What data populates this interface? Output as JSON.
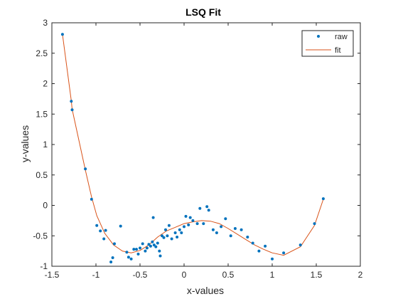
{
  "chart_data": {
    "type": "scatter",
    "title": "LSQ Fit",
    "xlabel": "x-values",
    "ylabel": "y-values",
    "xlim": [
      -1.5,
      2
    ],
    "ylim": [
      -1,
      3
    ],
    "xticks": [
      -1.5,
      -1,
      -0.5,
      0,
      0.5,
      1,
      1.5,
      2
    ],
    "yticks": [
      -1,
      -0.5,
      0,
      0.5,
      1,
      1.5,
      2,
      2.5,
      3
    ],
    "xtick_labels": [
      "-1.5",
      "-1",
      "-0.5",
      "0",
      "0.5",
      "1",
      "1.5",
      "2"
    ],
    "ytick_labels": [
      "-1",
      "-0.5",
      "0",
      "0.5",
      "1",
      "1.5",
      "2",
      "2.5",
      "3"
    ],
    "grid": false,
    "legend": {
      "position": "top-right",
      "entries": [
        "raw",
        "fit"
      ]
    },
    "colors": {
      "raw": "#0072bd",
      "fit": "#d95319"
    },
    "series": [
      {
        "name": "raw",
        "type": "scatter",
        "points": [
          [
            -1.38,
            2.81
          ],
          [
            -1.28,
            1.71
          ],
          [
            -1.27,
            1.57
          ],
          [
            -1.12,
            0.6
          ],
          [
            -1.05,
            0.1
          ],
          [
            -0.99,
            -0.33
          ],
          [
            -0.95,
            -0.42
          ],
          [
            -0.91,
            -0.55
          ],
          [
            -0.89,
            -0.41
          ],
          [
            -0.83,
            -0.93
          ],
          [
            -0.81,
            -0.86
          ],
          [
            -0.79,
            -0.63
          ],
          [
            -0.72,
            -0.34
          ],
          [
            -0.65,
            -0.77
          ],
          [
            -0.63,
            -0.85
          ],
          [
            -0.6,
            -0.88
          ],
          [
            -0.57,
            -0.72
          ],
          [
            -0.54,
            -0.72
          ],
          [
            -0.52,
            -0.8
          ],
          [
            -0.5,
            -0.7
          ],
          [
            -0.47,
            -0.63
          ],
          [
            -0.44,
            -0.75
          ],
          [
            -0.42,
            -0.7
          ],
          [
            -0.4,
            -0.64
          ],
          [
            -0.38,
            -0.67
          ],
          [
            -0.36,
            -0.6
          ],
          [
            -0.35,
            -0.2
          ],
          [
            -0.34,
            -0.65
          ],
          [
            -0.32,
            -0.68
          ],
          [
            -0.3,
            -0.62
          ],
          [
            -0.28,
            -0.75
          ],
          [
            -0.27,
            -0.83
          ],
          [
            -0.25,
            -0.5
          ],
          [
            -0.23,
            -0.53
          ],
          [
            -0.21,
            -0.4
          ],
          [
            -0.19,
            -0.5
          ],
          [
            -0.17,
            -0.33
          ],
          [
            -0.14,
            -0.55
          ],
          [
            -0.1,
            -0.45
          ],
          [
            -0.08,
            -0.52
          ],
          [
            -0.05,
            -0.4
          ],
          [
            -0.03,
            -0.45
          ],
          [
            0.0,
            -0.35
          ],
          [
            0.02,
            -0.18
          ],
          [
            0.05,
            -0.32
          ],
          [
            0.07,
            -0.2
          ],
          [
            0.1,
            -0.25
          ],
          [
            0.15,
            -0.3
          ],
          [
            0.18,
            -0.05
          ],
          [
            0.22,
            -0.3
          ],
          [
            0.26,
            -0.02
          ],
          [
            0.28,
            -0.08
          ],
          [
            0.33,
            -0.4
          ],
          [
            0.37,
            -0.45
          ],
          [
            0.42,
            -0.35
          ],
          [
            0.47,
            -0.22
          ],
          [
            0.53,
            -0.5
          ],
          [
            0.58,
            -0.38
          ],
          [
            0.65,
            -0.4
          ],
          [
            0.72,
            -0.52
          ],
          [
            0.78,
            -0.62
          ],
          [
            0.85,
            -0.75
          ],
          [
            0.92,
            -0.67
          ],
          [
            1.0,
            -0.88
          ],
          [
            1.13,
            -0.78
          ],
          [
            1.32,
            -0.65
          ],
          [
            1.48,
            -0.3
          ],
          [
            1.58,
            0.11
          ]
        ]
      },
      {
        "name": "fit",
        "type": "line",
        "points": [
          [
            -1.38,
            2.81
          ],
          [
            -1.28,
            1.72
          ],
          [
            -1.27,
            1.58
          ],
          [
            -1.12,
            0.58
          ],
          [
            -1.05,
            0.14
          ],
          [
            -0.99,
            -0.17
          ],
          [
            -0.9,
            -0.46
          ],
          [
            -0.8,
            -0.65
          ],
          [
            -0.7,
            -0.75
          ],
          [
            -0.6,
            -0.78
          ],
          [
            -0.5,
            -0.74
          ],
          [
            -0.4,
            -0.65
          ],
          [
            -0.3,
            -0.52
          ],
          [
            -0.2,
            -0.42
          ],
          [
            -0.1,
            -0.36
          ],
          [
            0.0,
            -0.3
          ],
          [
            0.1,
            -0.27
          ],
          [
            0.2,
            -0.25
          ],
          [
            0.3,
            -0.26
          ],
          [
            0.4,
            -0.3
          ],
          [
            0.5,
            -0.38
          ],
          [
            0.6,
            -0.47
          ],
          [
            0.7,
            -0.56
          ],
          [
            0.8,
            -0.65
          ],
          [
            0.9,
            -0.72
          ],
          [
            1.0,
            -0.78
          ],
          [
            1.13,
            -0.82
          ],
          [
            1.32,
            -0.68
          ],
          [
            1.48,
            -0.33
          ],
          [
            1.58,
            0.1
          ]
        ]
      }
    ]
  }
}
